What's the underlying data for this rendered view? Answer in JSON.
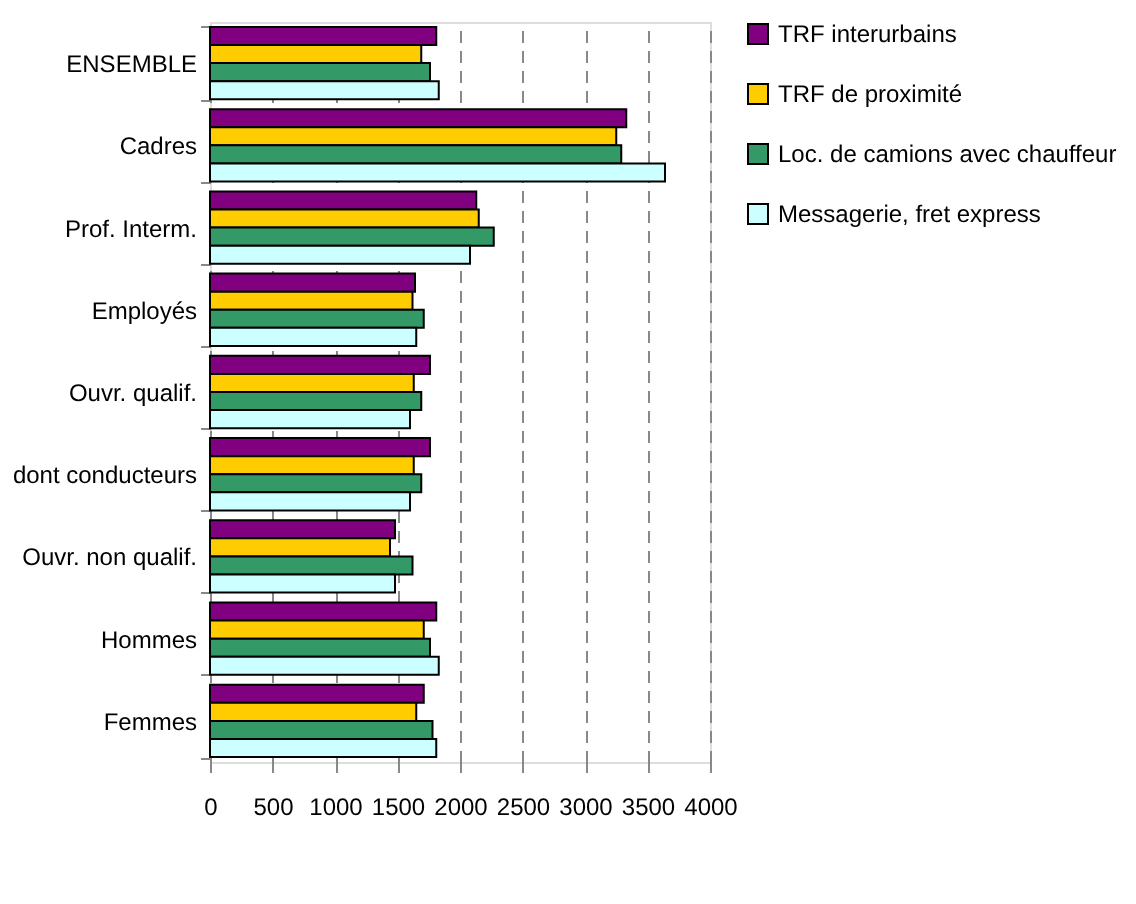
{
  "chart_data": {
    "type": "bar",
    "orientation": "horizontal",
    "categories": [
      "ENSEMBLE",
      "Cadres",
      "Prof. Interm.",
      "Employés",
      "Ouvr. qualif.",
      "dont conducteurs",
      "Ouvr. non qualif.",
      "Hommes",
      "Femmes"
    ],
    "series": [
      {
        "name": "TRF interurbains",
        "color": "#800080",
        "values": [
          1810,
          3330,
          2130,
          1640,
          1760,
          1760,
          1480,
          1810,
          1710
        ]
      },
      {
        "name": "TRF de proximité",
        "color": "#ffcc00",
        "values": [
          1690,
          3250,
          2150,
          1620,
          1630,
          1630,
          1440,
          1710,
          1650
        ]
      },
      {
        "name": "Loc. de camions avec chauffeur",
        "color": "#339966",
        "values": [
          1760,
          3290,
          2270,
          1710,
          1690,
          1690,
          1620,
          1760,
          1780
        ]
      },
      {
        "name": "Messagerie, fret express",
        "color": "#ccffff",
        "values": [
          1830,
          3640,
          2080,
          1650,
          1600,
          1600,
          1480,
          1830,
          1810
        ]
      }
    ],
    "xlim": [
      0,
      4000
    ],
    "xticks": [
      0,
      500,
      1000,
      1500,
      2000,
      2500,
      3000,
      3500,
      4000
    ],
    "grid": "x",
    "legend": "right"
  }
}
